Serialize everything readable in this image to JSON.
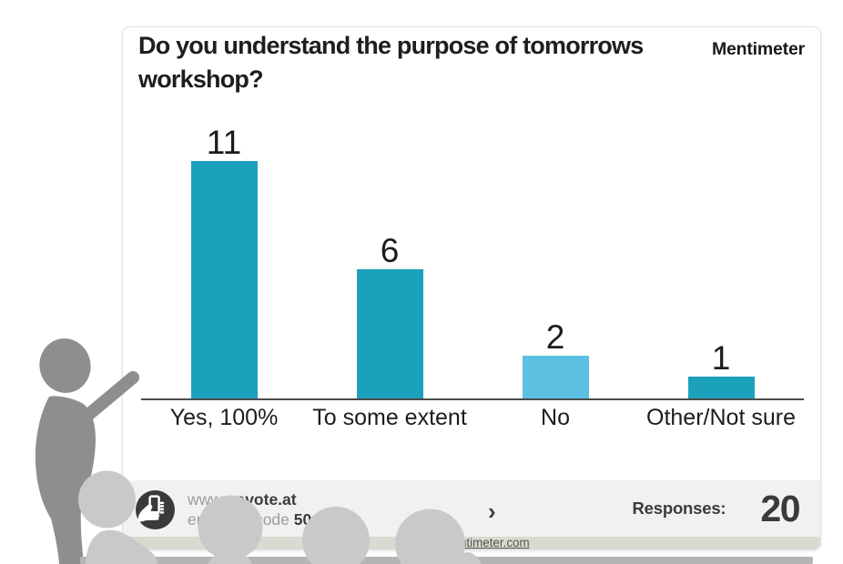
{
  "brand": {
    "logo_text": "Mentimeter"
  },
  "slide": {
    "title": "Do you understand the purpose of tomorrows workshop?"
  },
  "chart_data": {
    "type": "bar",
    "title": "Do you understand the purpose of tomorrows workshop?",
    "categories": [
      "Yes, 100%",
      "To some extent",
      "No",
      "Other/Not sure"
    ],
    "values": [
      11,
      6,
      2,
      1
    ],
    "value_labels": [
      "11",
      "6",
      "2",
      "1"
    ],
    "bar_colors": [
      "#1CA1BC",
      "#1CA1BC",
      "#5CC1E1",
      "#1CA1BC"
    ],
    "xlabel": "",
    "ylabel": "",
    "ylim": [
      0,
      11
    ],
    "grid": false,
    "legend": false,
    "value_labels_shown": true
  },
  "footer": {
    "join_url_prefix": "www.",
    "join_url_bold": "govote.at",
    "join_code_prefix": "enter the code ",
    "join_code_bold": "50",
    "next_chevron": "›",
    "responses_label": "Responses:",
    "responses_count": "20"
  },
  "strip": {
    "link_text": "www.mentimeter.com"
  },
  "overlay": {
    "presenter_color": "#8e8e8e",
    "audience_color": "#c9c9c9",
    "band_color": "#b5b5b5",
    "icon_circle_color": "#3a3a38"
  }
}
